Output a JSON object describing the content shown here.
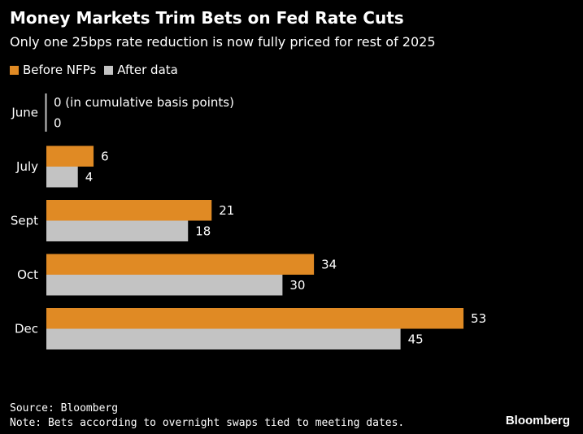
{
  "title": "Money Markets Trim Bets on Fed Rate Cuts",
  "subtitle": "Only one 25bps rate reduction is now fully priced for rest of 2025",
  "legend": {
    "before": "Before NFPs",
    "after": "After data"
  },
  "colors": {
    "before": "#e08a24",
    "after": "#c3c3c3",
    "background": "#000000",
    "text": "#ffffff"
  },
  "chart_data": {
    "type": "bar",
    "orientation": "horizontal",
    "title": "Money Markets Trim Bets on Fed Rate Cuts",
    "categories": [
      "June",
      "July",
      "Sept",
      "Oct",
      "Dec"
    ],
    "series": [
      {
        "name": "Before NFPs",
        "values": [
          0,
          6,
          21,
          34,
          53
        ]
      },
      {
        "name": "After data",
        "values": [
          0,
          4,
          18,
          30,
          45
        ]
      }
    ],
    "annotation": "0 (in cumulative basis points)",
    "xlabel": "",
    "ylabel": "",
    "xlim": [
      0,
      53
    ],
    "grid": false,
    "legend_position": "top-left"
  },
  "footer": {
    "source": "Source: Bloomberg",
    "note": "Note: Bets according to overnight swaps tied to meeting dates."
  },
  "brand": "Bloomberg"
}
